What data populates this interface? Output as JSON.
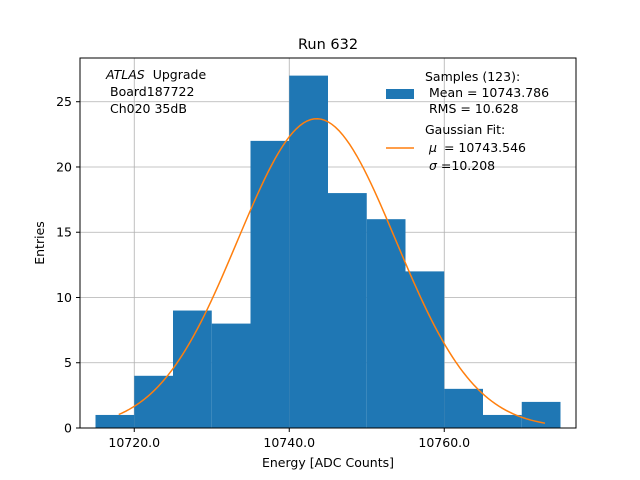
{
  "chart_data": {
    "type": "bar",
    "title": "Run 632",
    "xlabel": "Energy [ADC Counts]",
    "ylabel": "Entries",
    "xlim": [
      10713.0,
      10777.0
    ],
    "ylim": [
      0,
      28.35
    ],
    "grid": true,
    "xticks": [
      10720.0,
      10740.0,
      10760.0
    ],
    "xtick_labels": [
      "10720.0",
      "10740.0",
      "10760.0"
    ],
    "yticks": [
      0,
      5,
      10,
      15,
      20,
      25
    ],
    "ytick_labels": [
      "0",
      "5",
      "10",
      "15",
      "20",
      "25"
    ],
    "bins": [
      {
        "x0": 10715.0,
        "x1": 10720.0,
        "count": 1
      },
      {
        "x0": 10720.0,
        "x1": 10725.0,
        "count": 4
      },
      {
        "x0": 10725.0,
        "x1": 10730.0,
        "count": 9
      },
      {
        "x0": 10730.0,
        "x1": 10735.0,
        "count": 8
      },
      {
        "x0": 10735.0,
        "x1": 10740.0,
        "count": 22
      },
      {
        "x0": 10740.0,
        "x1": 10745.0,
        "count": 27
      },
      {
        "x0": 10745.0,
        "x1": 10750.0,
        "count": 18
      },
      {
        "x0": 10750.0,
        "x1": 10755.0,
        "count": 16
      },
      {
        "x0": 10755.0,
        "x1": 10760.0,
        "count": 12
      },
      {
        "x0": 10760.0,
        "x1": 10765.0,
        "count": 3
      },
      {
        "x0": 10765.0,
        "x1": 10770.0,
        "count": 1
      },
      {
        "x0": 10770.0,
        "x1": 10775.0,
        "count": 2
      }
    ],
    "fit": {
      "name": "Gaussian Fit",
      "mu": 10743.546,
      "sigma": 10.208,
      "amplitude": 23.7,
      "x_range": [
        10718.0,
        10773.0
      ]
    },
    "series_colors": {
      "histogram": "#1f77b4",
      "fit": "#ff7f0e",
      "grid": "#b0b0b0"
    },
    "annotation": {
      "atlas": "ATLAS",
      "upgrade": "Upgrade",
      "board": "Board187722",
      "channel": "Ch020 35dB"
    },
    "legend": {
      "placement": "top-right",
      "samples_label": "Samples (123):",
      "mean_label": "Mean = 10743.786",
      "rms_label": "RMS = 10.628",
      "fit_label": "Gaussian Fit:",
      "mu_symbol": "μ",
      "mu_value": "= 10743.546",
      "sigma_symbol": "σ",
      "sigma_value": "=10.208"
    }
  }
}
